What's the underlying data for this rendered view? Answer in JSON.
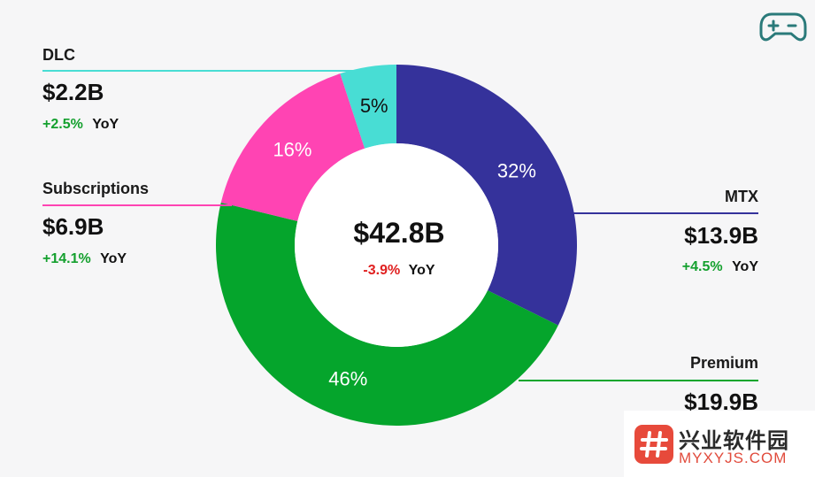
{
  "chart_data": {
    "type": "donut",
    "total": {
      "value": "$42.8B",
      "yoy_value": "-3.9%",
      "yoy_label": "YoY"
    },
    "slices": [
      {
        "name": "MTX",
        "percent": 32,
        "pct_label": "32%",
        "value": "$13.9B",
        "yoy_value": "+4.5%",
        "yoy_label": "YoY",
        "color": "#35329b"
      },
      {
        "name": "Premium",
        "percent": 46,
        "pct_label": "46%",
        "value": "$19.9B",
        "color": "#05a52c"
      },
      {
        "name": "Subscriptions",
        "percent": 16,
        "pct_label": "16%",
        "value": "$6.9B",
        "yoy_value": "+14.1%",
        "yoy_label": "YoY",
        "color": "#ff44b3"
      },
      {
        "name": "DLC",
        "percent": 5,
        "pct_label": "5%",
        "value": "$2.2B",
        "yoy_value": "+2.5%",
        "yoy_label": "YoY",
        "color": "#48ddd4"
      }
    ],
    "colors": {
      "positive": "#14a02e",
      "negative": "#e02020",
      "inner_hole": "#ffffff"
    }
  },
  "icon": "game-controller-icon",
  "watermark": {
    "title": "兴业软件园",
    "url": "MYXYJS.COM"
  }
}
